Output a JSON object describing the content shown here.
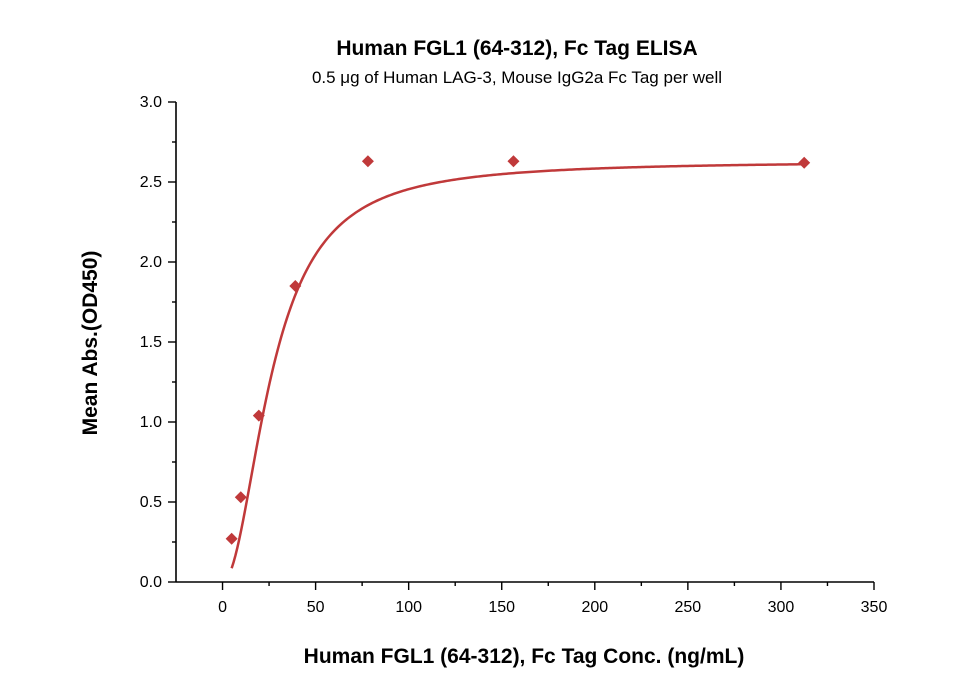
{
  "chart_data": {
    "type": "scatter",
    "title": "Human FGL1 (64-312), Fc Tag ELISA",
    "subtitle": "0.5 μg of Human LAG-3, Mouse IgG2a Fc Tag per well",
    "xlabel": "Human FGL1 (64-312), Fc Tag Conc. (ng/mL)",
    "ylabel": "Mean Abs.(OD450)",
    "xlim": [
      -25,
      350
    ],
    "ylim": [
      0,
      3.0
    ],
    "x_ticks": [
      "0",
      "50",
      "100",
      "150",
      "200",
      "250",
      "300",
      "350"
    ],
    "y_ticks": [
      "0.0",
      "0.5",
      "1.0",
      "1.5",
      "2.0",
      "2.5",
      "3.0"
    ],
    "grid": false,
    "legend": "none",
    "series": [
      {
        "marker": "diamond",
        "color": "#c0393a",
        "x": [
          4.9,
          9.8,
          19.5,
          39.1,
          78.1,
          156.3,
          312.5
        ],
        "y": [
          0.27,
          0.53,
          1.04,
          1.85,
          2.63,
          2.63,
          2.62
        ],
        "fit": "sigmoidal"
      }
    ]
  }
}
